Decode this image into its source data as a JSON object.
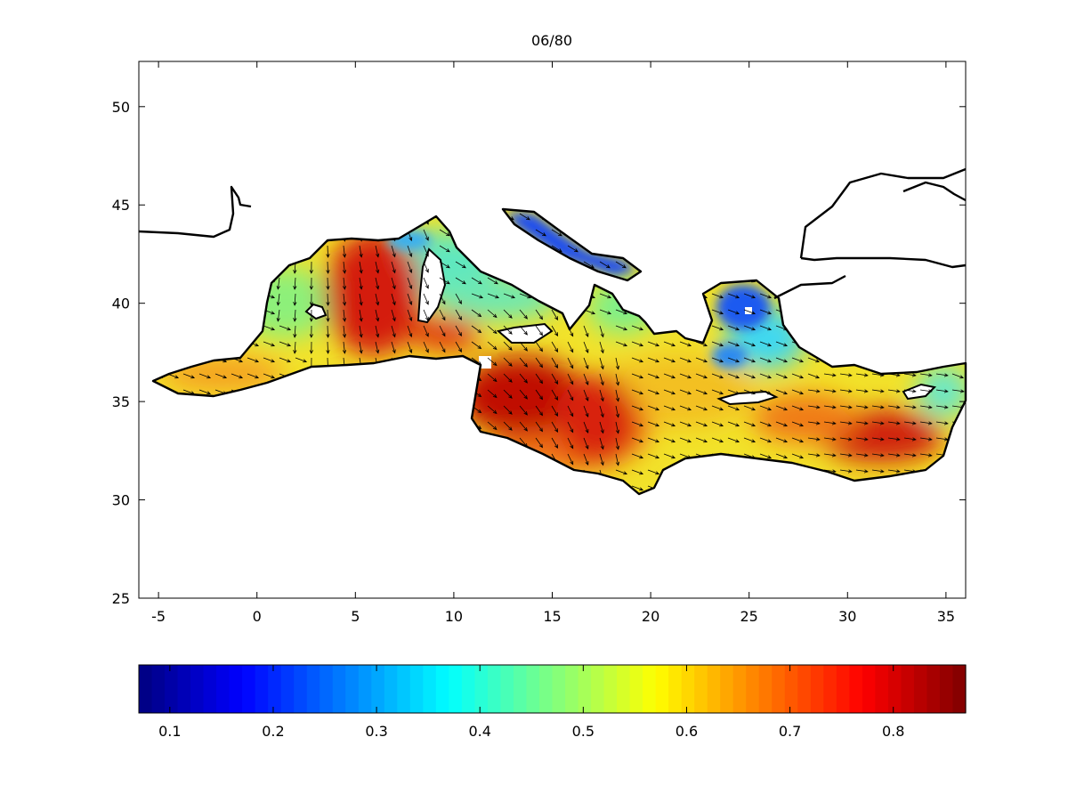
{
  "figure": {
    "title": "06/80"
  },
  "map": {
    "type": "heatmap",
    "x_ticks": [
      "-5",
      "0",
      "5",
      "10",
      "15",
      "20",
      "25",
      "30",
      "35"
    ],
    "x_tick_values": [
      -5,
      0,
      5,
      10,
      15,
      20,
      25,
      30,
      35
    ],
    "y_ticks": [
      "50",
      "45",
      "40",
      "35",
      "30",
      "25"
    ],
    "y_tick_values": [
      50,
      45,
      40,
      35,
      30,
      25
    ],
    "xlim": [
      -6,
      36
    ],
    "ylim": [
      25,
      52.3
    ],
    "grid": false,
    "field_colors": {
      "low": "#2a7df5",
      "mid": "#9cf06a",
      "high": "#d91a0a"
    }
  },
  "colorbar": {
    "range": [
      0.07,
      0.87
    ],
    "ticks": [
      "0.1",
      "0.2",
      "0.3",
      "0.4",
      "0.5",
      "0.6",
      "0.7",
      "0.8"
    ],
    "tick_values": [
      0.1,
      0.2,
      0.3,
      0.4,
      0.5,
      0.6,
      0.7,
      0.8
    ],
    "colormap": "jet"
  },
  "chart_data": {
    "type": "heatmap",
    "title": "06/80",
    "xlim": [
      -6,
      36
    ],
    "ylim": [
      25,
      52.3
    ],
    "colorbar_range": [
      0.07,
      0.87
    ],
    "colorbar_ticks": [
      0.1,
      0.2,
      0.3,
      0.4,
      0.5,
      0.6,
      0.7,
      0.8
    ],
    "high_regions": [
      {
        "lon": 6,
        "lat": 40.5,
        "value": 0.82
      },
      {
        "lon": 13,
        "lat": 35,
        "value": 0.85
      },
      {
        "lon": 31,
        "lat": 33.5,
        "value": 0.8
      }
    ],
    "low_regions": [
      {
        "lon": 15,
        "lat": 43,
        "value": 0.18
      },
      {
        "lon": 25,
        "lat": 40,
        "value": 0.22
      }
    ]
  }
}
